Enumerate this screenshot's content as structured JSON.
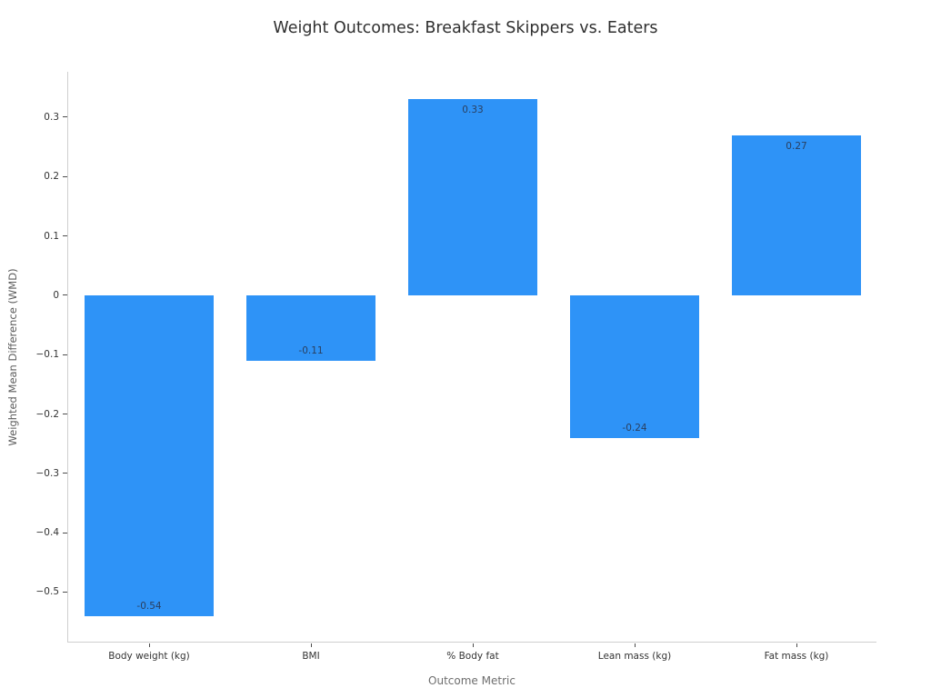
{
  "chart_data": {
    "type": "bar",
    "title": "Weight Outcomes: Breakfast Skippers vs. Eaters",
    "xlabel": "Outcome Metric",
    "ylabel": "Weighted Mean Difference (WMD)",
    "categories": [
      "Body weight (kg)",
      "BMI",
      "% Body fat",
      "Lean mass (kg)",
      "Fat mass (kg)"
    ],
    "values": [
      -0.54,
      -0.11,
      0.33,
      -0.24,
      0.27
    ],
    "bar_labels": [
      "-0.54",
      "-0.11",
      "0.33",
      "-0.24",
      "0.27"
    ],
    "yticks": [
      0.3,
      0.2,
      0.1,
      0,
      -0.1,
      -0.2,
      -0.3,
      -0.4,
      -0.5
    ],
    "ytick_labels": [
      "0.3",
      "0.2",
      "0.1",
      "0",
      "−0.1",
      "−0.2",
      "−0.3",
      "−0.4",
      "−0.5"
    ],
    "ylim": [
      -0.585,
      0.3765
    ],
    "bar_width_fraction": 0.8,
    "grid": false,
    "legend": "none",
    "colors": {
      "bar": "#2e93f7",
      "background": "#ffffff",
      "spine": "#cfcfcf",
      "tick_mark": "#4d4d4d",
      "title_text": "#2f2f2f",
      "tick_text": "#333333",
      "axis_label_text": "#6e6e6e",
      "bar_label_text": "#2a3f5f"
    }
  }
}
